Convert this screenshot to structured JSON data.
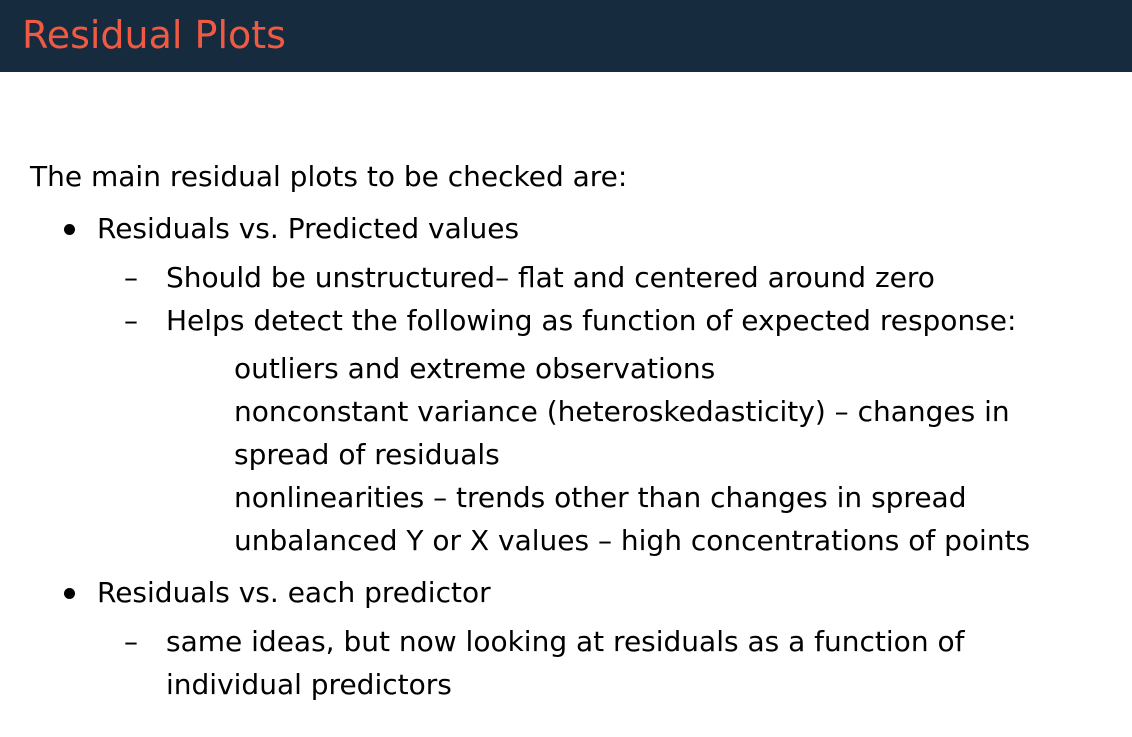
{
  "slide": {
    "title": "Residual Plots",
    "intro": "The main residual plots to be checked are:",
    "bullet1": {
      "label": "Residuals vs. Predicted values",
      "sub1": "Should be unstructured– flat and centered around zero",
      "sub2": "Helps detect the following as function of expected response:",
      "details": [
        "outliers and extreme observations",
        "nonconstant variance (heteroskedasticity) – changes in",
        "spread of residuals",
        "nonlinearities – trends other than changes in spread",
        "unbalanced Y or X values – high concentrations of points"
      ]
    },
    "bullet2": {
      "label": "Residuals vs. each predictor",
      "sub1_line1": "same ideas, but now looking at residuals as a function of",
      "sub1_line2": "individual predictors"
    },
    "dash_glyph": "–"
  },
  "colors": {
    "title_bar": "#172b3f",
    "title_text": "#f05a42",
    "body_text": "#000000",
    "background": "#ffffff"
  }
}
